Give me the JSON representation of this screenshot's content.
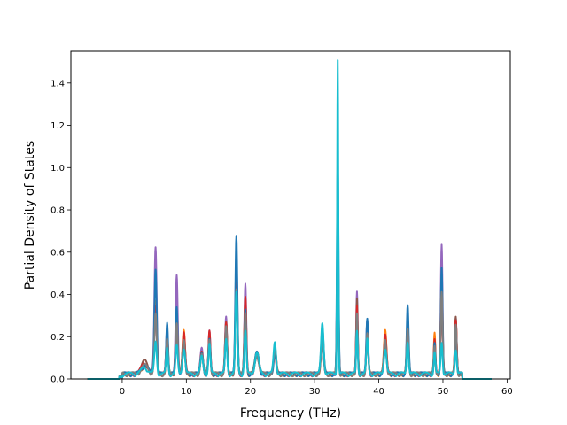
{
  "chart_data": {
    "type": "line",
    "xlabel": "Frequency (THz)",
    "ylabel": "Partial Density of States",
    "xlim": [
      -8,
      60.5
    ],
    "ylim": [
      0,
      1.55
    ],
    "xticks": [
      0,
      10,
      20,
      30,
      40,
      50,
      60
    ],
    "xtick_labels": [
      "0",
      "10",
      "20",
      "30",
      "40",
      "50",
      "60"
    ],
    "yticks": [
      0.0,
      0.2,
      0.4,
      0.6,
      0.8,
      1.0,
      1.2,
      1.4
    ],
    "ytick_labels": [
      "0.0",
      "0.2",
      "0.4",
      "0.6",
      "0.8",
      "1.0",
      "1.2",
      "1.4"
    ],
    "grid": false,
    "legend": "none",
    "x_range": [
      -5.4,
      57.6
    ],
    "colors": [
      "#9467bd",
      "#ff7f0e",
      "#8c564b",
      "#d62728",
      "#1f77b4",
      "#7f7f7f",
      "#17becf"
    ],
    "series": [
      {
        "peaks": [
          [
            3.5,
            0.05,
            0.5
          ],
          [
            5.2,
            0.6,
            0.18
          ],
          [
            7.0,
            0.22,
            0.15
          ],
          [
            8.5,
            0.46,
            0.16
          ],
          [
            9.6,
            0.18,
            0.2
          ],
          [
            12.4,
            0.12,
            0.2
          ],
          [
            13.6,
            0.2,
            0.15
          ],
          [
            16.2,
            0.27,
            0.16
          ],
          [
            17.8,
            0.55,
            0.16
          ],
          [
            19.2,
            0.42,
            0.15
          ],
          [
            21.0,
            0.1,
            0.3
          ],
          [
            23.8,
            0.12,
            0.2
          ],
          [
            31.2,
            0.2,
            0.2
          ],
          [
            33.6,
            0.8,
            0.12
          ],
          [
            36.6,
            0.39,
            0.12
          ],
          [
            38.2,
            0.25,
            0.15
          ],
          [
            41.0,
            0.18,
            0.2
          ],
          [
            44.5,
            0.26,
            0.15
          ],
          [
            48.7,
            0.17,
            0.12
          ],
          [
            49.8,
            0.62,
            0.14
          ],
          [
            52.0,
            0.27,
            0.14
          ]
        ]
      },
      {
        "peaks": [
          [
            3.5,
            0.04,
            0.5
          ],
          [
            5.2,
            0.35,
            0.18
          ],
          [
            7.0,
            0.2,
            0.15
          ],
          [
            8.5,
            0.3,
            0.16
          ],
          [
            9.6,
            0.2,
            0.2
          ],
          [
            12.4,
            0.1,
            0.2
          ],
          [
            13.6,
            0.18,
            0.15
          ],
          [
            16.2,
            0.25,
            0.16
          ],
          [
            17.8,
            0.5,
            0.16
          ],
          [
            19.2,
            0.35,
            0.15
          ],
          [
            21.0,
            0.1,
            0.3
          ],
          [
            23.8,
            0.13,
            0.2
          ],
          [
            31.2,
            0.18,
            0.2
          ],
          [
            33.6,
            0.7,
            0.12
          ],
          [
            36.6,
            0.3,
            0.12
          ],
          [
            38.2,
            0.22,
            0.15
          ],
          [
            41.0,
            0.2,
            0.2
          ],
          [
            44.5,
            0.2,
            0.15
          ],
          [
            48.7,
            0.19,
            0.12
          ],
          [
            49.8,
            0.45,
            0.14
          ],
          [
            52.0,
            0.25,
            0.14
          ]
        ]
      },
      {
        "peaks": [
          [
            3.5,
            0.06,
            0.5
          ],
          [
            5.2,
            0.3,
            0.18
          ],
          [
            7.0,
            0.18,
            0.15
          ],
          [
            8.5,
            0.25,
            0.16
          ],
          [
            9.6,
            0.17,
            0.2
          ],
          [
            12.4,
            0.1,
            0.2
          ],
          [
            13.6,
            0.19,
            0.15
          ],
          [
            16.2,
            0.24,
            0.16
          ],
          [
            17.8,
            0.45,
            0.16
          ],
          [
            19.2,
            0.33,
            0.15
          ],
          [
            21.0,
            0.09,
            0.3
          ],
          [
            23.8,
            0.12,
            0.2
          ],
          [
            31.2,
            0.17,
            0.2
          ],
          [
            33.6,
            0.6,
            0.12
          ],
          [
            36.6,
            0.35,
            0.12
          ],
          [
            38.2,
            0.2,
            0.15
          ],
          [
            41.0,
            0.17,
            0.2
          ],
          [
            44.5,
            0.24,
            0.15
          ],
          [
            48.7,
            0.15,
            0.12
          ],
          [
            49.8,
            0.4,
            0.14
          ],
          [
            52.0,
            0.27,
            0.14
          ]
        ]
      },
      {
        "peaks": [
          [
            3.5,
            0.05,
            0.5
          ],
          [
            5.2,
            0.32,
            0.18
          ],
          [
            7.0,
            0.19,
            0.15
          ],
          [
            8.5,
            0.28,
            0.16
          ],
          [
            9.6,
            0.2,
            0.2
          ],
          [
            12.4,
            0.1,
            0.2
          ],
          [
            13.6,
            0.2,
            0.15
          ],
          [
            16.2,
            0.24,
            0.16
          ],
          [
            17.8,
            0.44,
            0.16
          ],
          [
            19.2,
            0.36,
            0.15
          ],
          [
            21.0,
            0.1,
            0.3
          ],
          [
            23.8,
            0.1,
            0.2
          ],
          [
            31.2,
            0.19,
            0.2
          ],
          [
            33.6,
            0.6,
            0.12
          ],
          [
            36.6,
            0.32,
            0.12
          ],
          [
            38.2,
            0.2,
            0.15
          ],
          [
            41.0,
            0.19,
            0.2
          ],
          [
            44.5,
            0.22,
            0.15
          ],
          [
            48.7,
            0.16,
            0.12
          ],
          [
            49.8,
            0.43,
            0.14
          ],
          [
            52.0,
            0.26,
            0.14
          ]
        ]
      },
      {
        "peaks": [
          [
            3.5,
            0.04,
            0.5
          ],
          [
            5.2,
            0.5,
            0.18
          ],
          [
            7.0,
            0.25,
            0.15
          ],
          [
            8.5,
            0.32,
            0.16
          ],
          [
            9.6,
            0.15,
            0.2
          ],
          [
            12.4,
            0.11,
            0.2
          ],
          [
            13.6,
            0.16,
            0.15
          ],
          [
            16.2,
            0.2,
            0.16
          ],
          [
            17.8,
            0.66,
            0.16
          ],
          [
            19.2,
            0.3,
            0.15
          ],
          [
            21.0,
            0.1,
            0.3
          ],
          [
            23.8,
            0.1,
            0.2
          ],
          [
            31.2,
            0.22,
            0.2
          ],
          [
            33.6,
            1.0,
            0.12
          ],
          [
            36.6,
            0.25,
            0.12
          ],
          [
            38.2,
            0.27,
            0.15
          ],
          [
            41.0,
            0.14,
            0.2
          ],
          [
            44.5,
            0.32,
            0.15
          ],
          [
            48.7,
            0.14,
            0.12
          ],
          [
            49.8,
            0.5,
            0.14
          ],
          [
            52.0,
            0.2,
            0.14
          ]
        ]
      },
      {
        "peaks": [
          [
            3.5,
            0.04,
            0.5
          ],
          [
            5.2,
            0.28,
            0.18
          ],
          [
            7.0,
            0.16,
            0.15
          ],
          [
            8.5,
            0.24,
            0.16
          ],
          [
            9.6,
            0.16,
            0.2
          ],
          [
            12.4,
            0.09,
            0.2
          ],
          [
            13.6,
            0.17,
            0.15
          ],
          [
            16.2,
            0.22,
            0.16
          ],
          [
            17.8,
            0.4,
            0.16
          ],
          [
            19.2,
            0.3,
            0.15
          ],
          [
            21.0,
            0.09,
            0.3
          ],
          [
            23.8,
            0.11,
            0.2
          ],
          [
            31.2,
            0.17,
            0.2
          ],
          [
            33.6,
            0.65,
            0.12
          ],
          [
            36.6,
            0.28,
            0.12
          ],
          [
            38.2,
            0.19,
            0.15
          ],
          [
            41.0,
            0.16,
            0.2
          ],
          [
            44.5,
            0.21,
            0.15
          ],
          [
            48.7,
            0.14,
            0.12
          ],
          [
            49.8,
            0.38,
            0.14
          ],
          [
            52.0,
            0.23,
            0.14
          ]
        ]
      },
      {
        "peaks": [
          [
            3.5,
            0.03,
            0.5
          ],
          [
            5.2,
            0.15,
            0.18
          ],
          [
            7.0,
            0.12,
            0.15
          ],
          [
            8.5,
            0.13,
            0.16
          ],
          [
            9.6,
            0.12,
            0.2
          ],
          [
            12.4,
            0.08,
            0.2
          ],
          [
            13.6,
            0.14,
            0.15
          ],
          [
            16.2,
            0.16,
            0.16
          ],
          [
            17.8,
            0.38,
            0.16
          ],
          [
            19.2,
            0.2,
            0.15
          ],
          [
            21.0,
            0.1,
            0.3
          ],
          [
            23.8,
            0.15,
            0.2
          ],
          [
            31.2,
            0.24,
            0.2
          ],
          [
            33.6,
            1.49,
            0.09
          ],
          [
            36.6,
            0.2,
            0.12
          ],
          [
            38.2,
            0.16,
            0.15
          ],
          [
            41.0,
            0.12,
            0.2
          ],
          [
            44.5,
            0.16,
            0.15
          ],
          [
            48.7,
            0.1,
            0.12
          ],
          [
            49.8,
            0.15,
            0.14
          ],
          [
            52.0,
            0.12,
            0.14
          ]
        ]
      }
    ]
  }
}
